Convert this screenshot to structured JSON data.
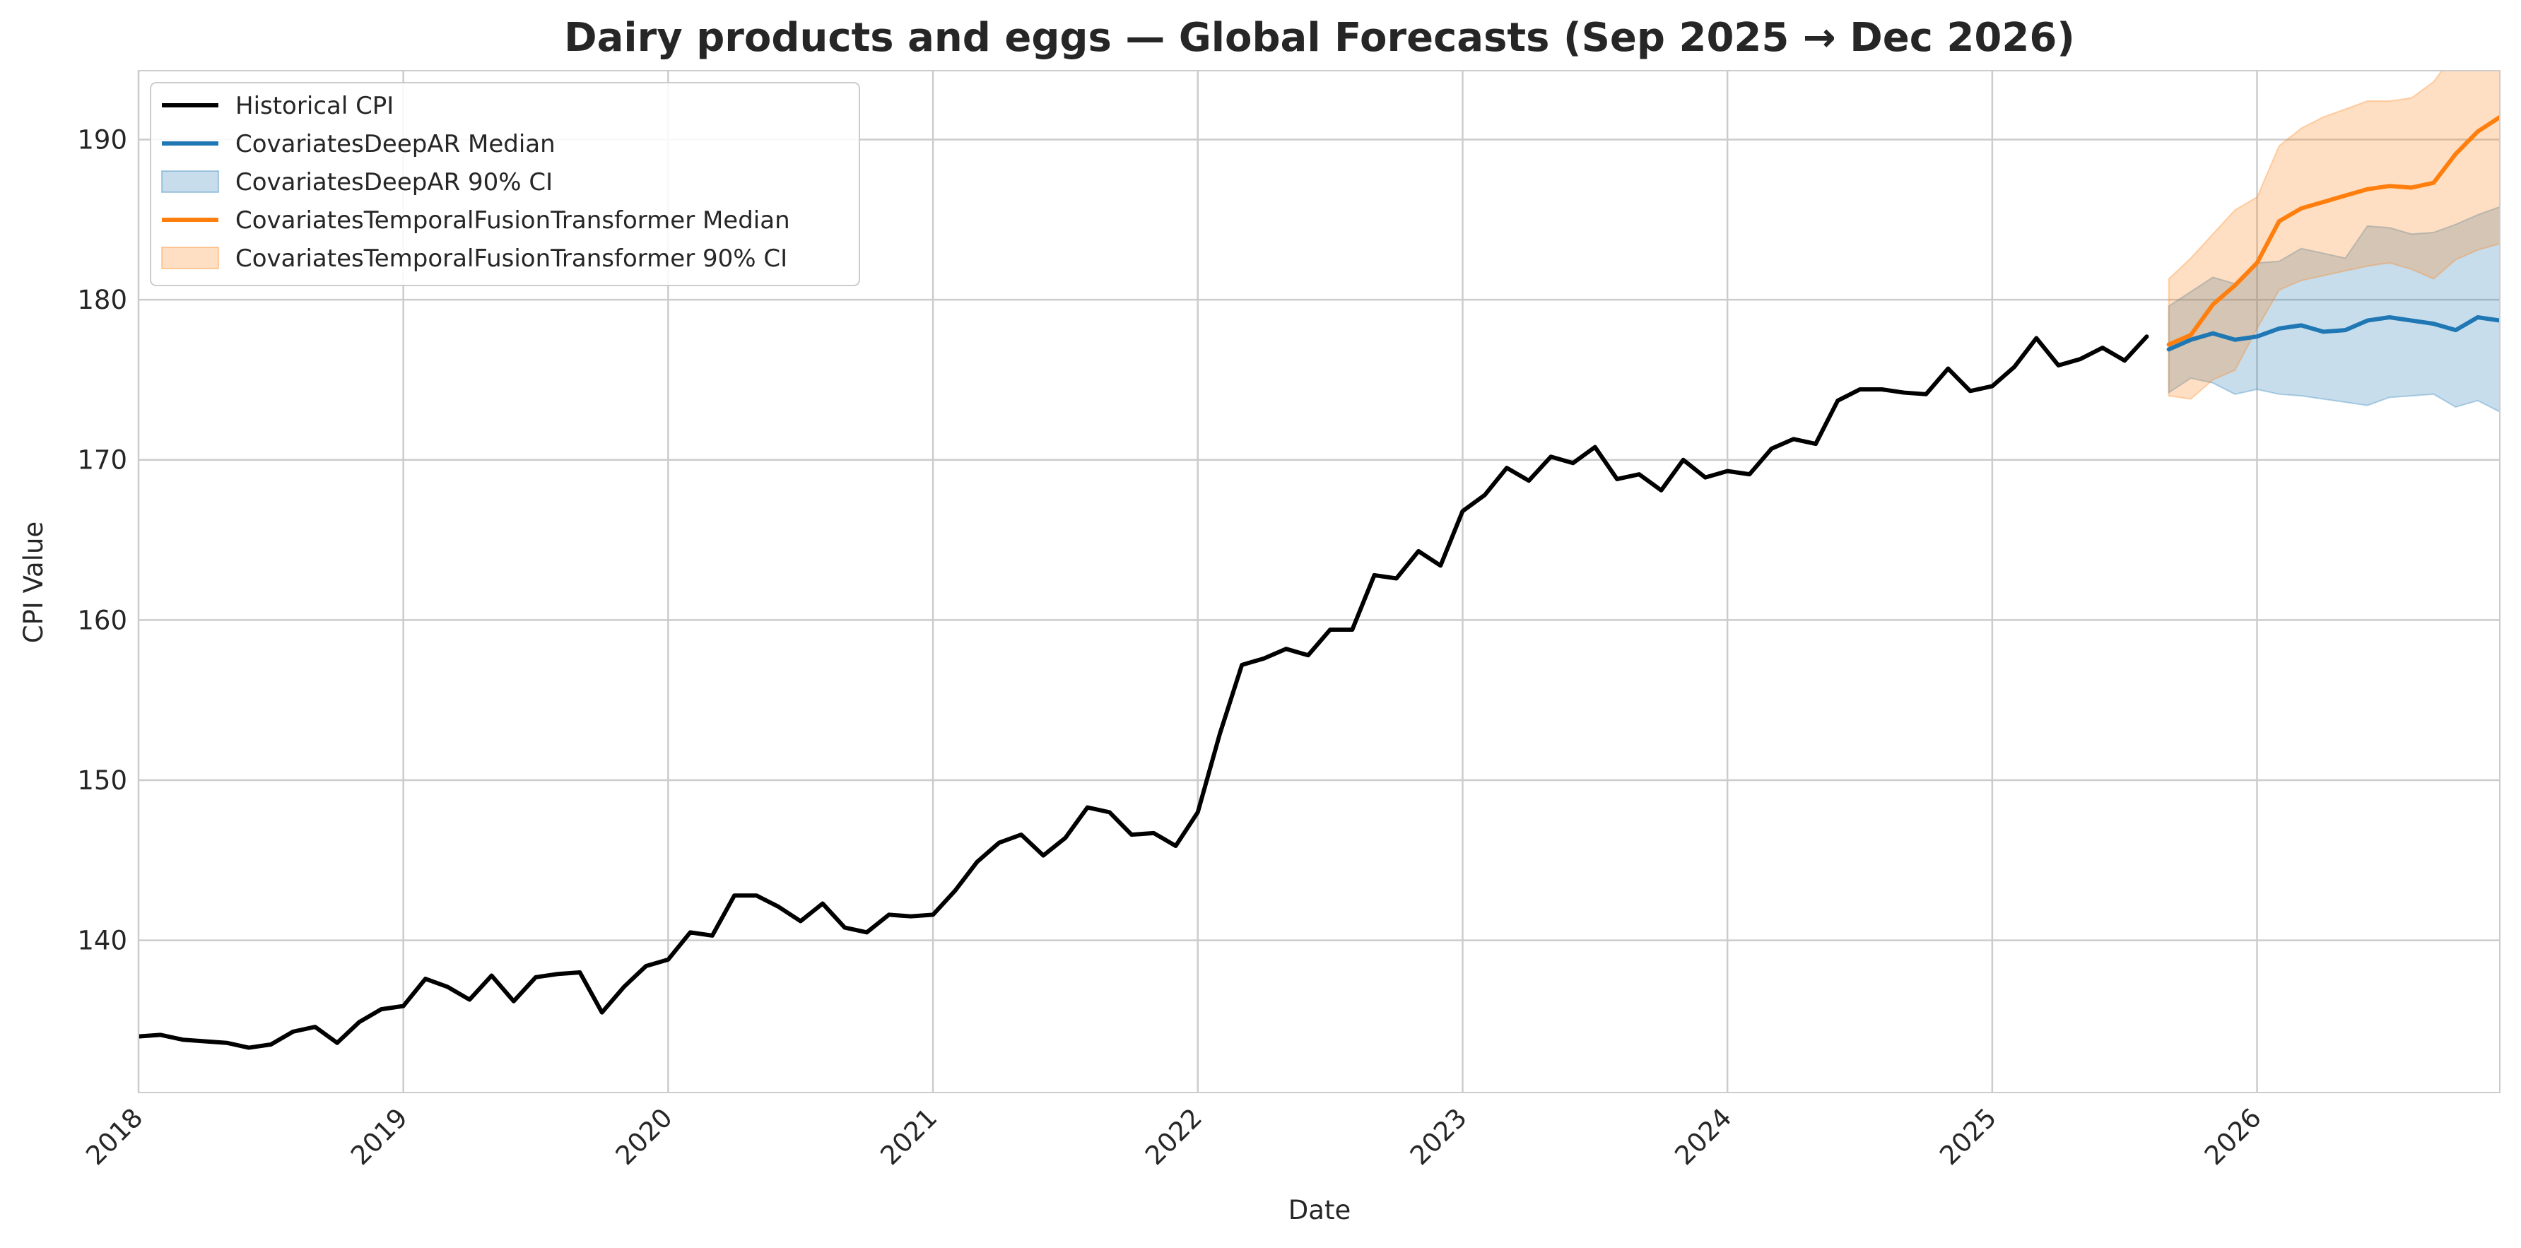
{
  "colors": {
    "historical": "#000000",
    "deepar": "#1f77b4",
    "tft": "#ff7f0e",
    "grid": "#cccccc",
    "spine": "#cccccc",
    "background": "#ffffff"
  },
  "chart_data": {
    "type": "line",
    "title": "Dairy products and eggs — Global Forecasts (Sep 2025 → Dec 2026)",
    "xlabel": "Date",
    "ylabel": "CPI Value",
    "xlim": [
      "2018-01",
      "2026-12"
    ],
    "ylim": [
      130.5,
      194.3
    ],
    "yticks": [
      140,
      150,
      160,
      170,
      180,
      190
    ],
    "xticks": [
      "2018",
      "2019",
      "2020",
      "2021",
      "2022",
      "2023",
      "2024",
      "2025",
      "2026"
    ],
    "grid": true,
    "legend_position": "top-left",
    "legend": [
      {
        "label": "Historical CPI",
        "kind": "line",
        "color": "historical"
      },
      {
        "label": "CovariatesDeepAR Median",
        "kind": "line",
        "color": "deepar"
      },
      {
        "label": "CovariatesDeepAR 90% CI",
        "kind": "band",
        "color": "deepar"
      },
      {
        "label": "CovariatesTemporalFusionTransformer Median",
        "kind": "line",
        "color": "tft"
      },
      {
        "label": "CovariatesTemporalFusionTransformer 90% CI",
        "kind": "band",
        "color": "tft"
      }
    ],
    "historical": {
      "name": "Historical CPI",
      "start": "2018-01",
      "values": [
        134.0,
        134.1,
        133.8,
        133.7,
        133.6,
        133.3,
        133.5,
        134.3,
        134.6,
        133.6,
        134.9,
        135.7,
        135.9,
        137.6,
        137.1,
        136.3,
        137.8,
        136.2,
        137.7,
        137.9,
        138.0,
        135.5,
        137.1,
        138.4,
        138.8,
        140.5,
        140.3,
        142.8,
        142.8,
        142.1,
        141.2,
        142.3,
        140.8,
        140.5,
        141.6,
        141.5,
        141.6,
        143.1,
        144.9,
        146.1,
        146.6,
        145.3,
        146.4,
        148.3,
        148.0,
        146.6,
        146.7,
        145.9,
        148.0,
        152.9,
        157.2,
        157.6,
        158.2,
        157.8,
        159.4,
        159.4,
        162.8,
        162.6,
        164.3,
        163.4,
        166.8,
        167.8,
        169.5,
        168.7,
        170.2,
        169.8,
        170.8,
        168.8,
        169.1,
        168.1,
        170.0,
        168.9,
        169.3,
        169.1,
        170.7,
        171.3,
        171.0,
        173.7,
        174.4,
        174.4,
        174.2,
        174.1,
        175.7,
        174.3,
        174.6,
        175.8,
        177.6,
        175.9,
        176.3,
        177.0,
        176.2,
        177.7
      ]
    },
    "forecast_start": "2025-09",
    "deepar": {
      "median": [
        176.9,
        177.5,
        177.9,
        177.5,
        177.7,
        178.2,
        178.4,
        178.0,
        178.1,
        178.7,
        178.9,
        178.7,
        178.5,
        178.1,
        178.9,
        178.7
      ],
      "lower": [
        174.2,
        175.1,
        174.8,
        174.1,
        174.4,
        174.1,
        174.0,
        173.8,
        173.6,
        173.4,
        173.9,
        174.0,
        174.1,
        173.3,
        173.7,
        173.0
      ],
      "upper": [
        179.6,
        180.5,
        181.4,
        181.0,
        182.3,
        182.4,
        183.2,
        182.9,
        182.6,
        184.6,
        184.5,
        184.1,
        184.2,
        184.7,
        185.3,
        185.8
      ]
    },
    "tft": {
      "median": [
        177.2,
        177.8,
        179.7,
        180.9,
        182.3,
        184.9,
        185.7,
        186.1,
        186.5,
        186.9,
        187.1,
        187.0,
        187.3,
        189.1,
        190.5,
        191.4
      ],
      "lower": [
        174.0,
        173.8,
        175.0,
        175.6,
        178.2,
        180.6,
        181.2,
        181.5,
        181.8,
        182.1,
        182.3,
        181.9,
        181.3,
        182.5,
        183.1,
        183.5
      ],
      "upper": [
        181.3,
        182.6,
        184.1,
        185.6,
        186.4,
        189.6,
        190.7,
        191.4,
        191.9,
        192.4,
        192.4,
        192.6,
        193.6,
        195.5,
        197.5,
        199.5
      ]
    }
  }
}
